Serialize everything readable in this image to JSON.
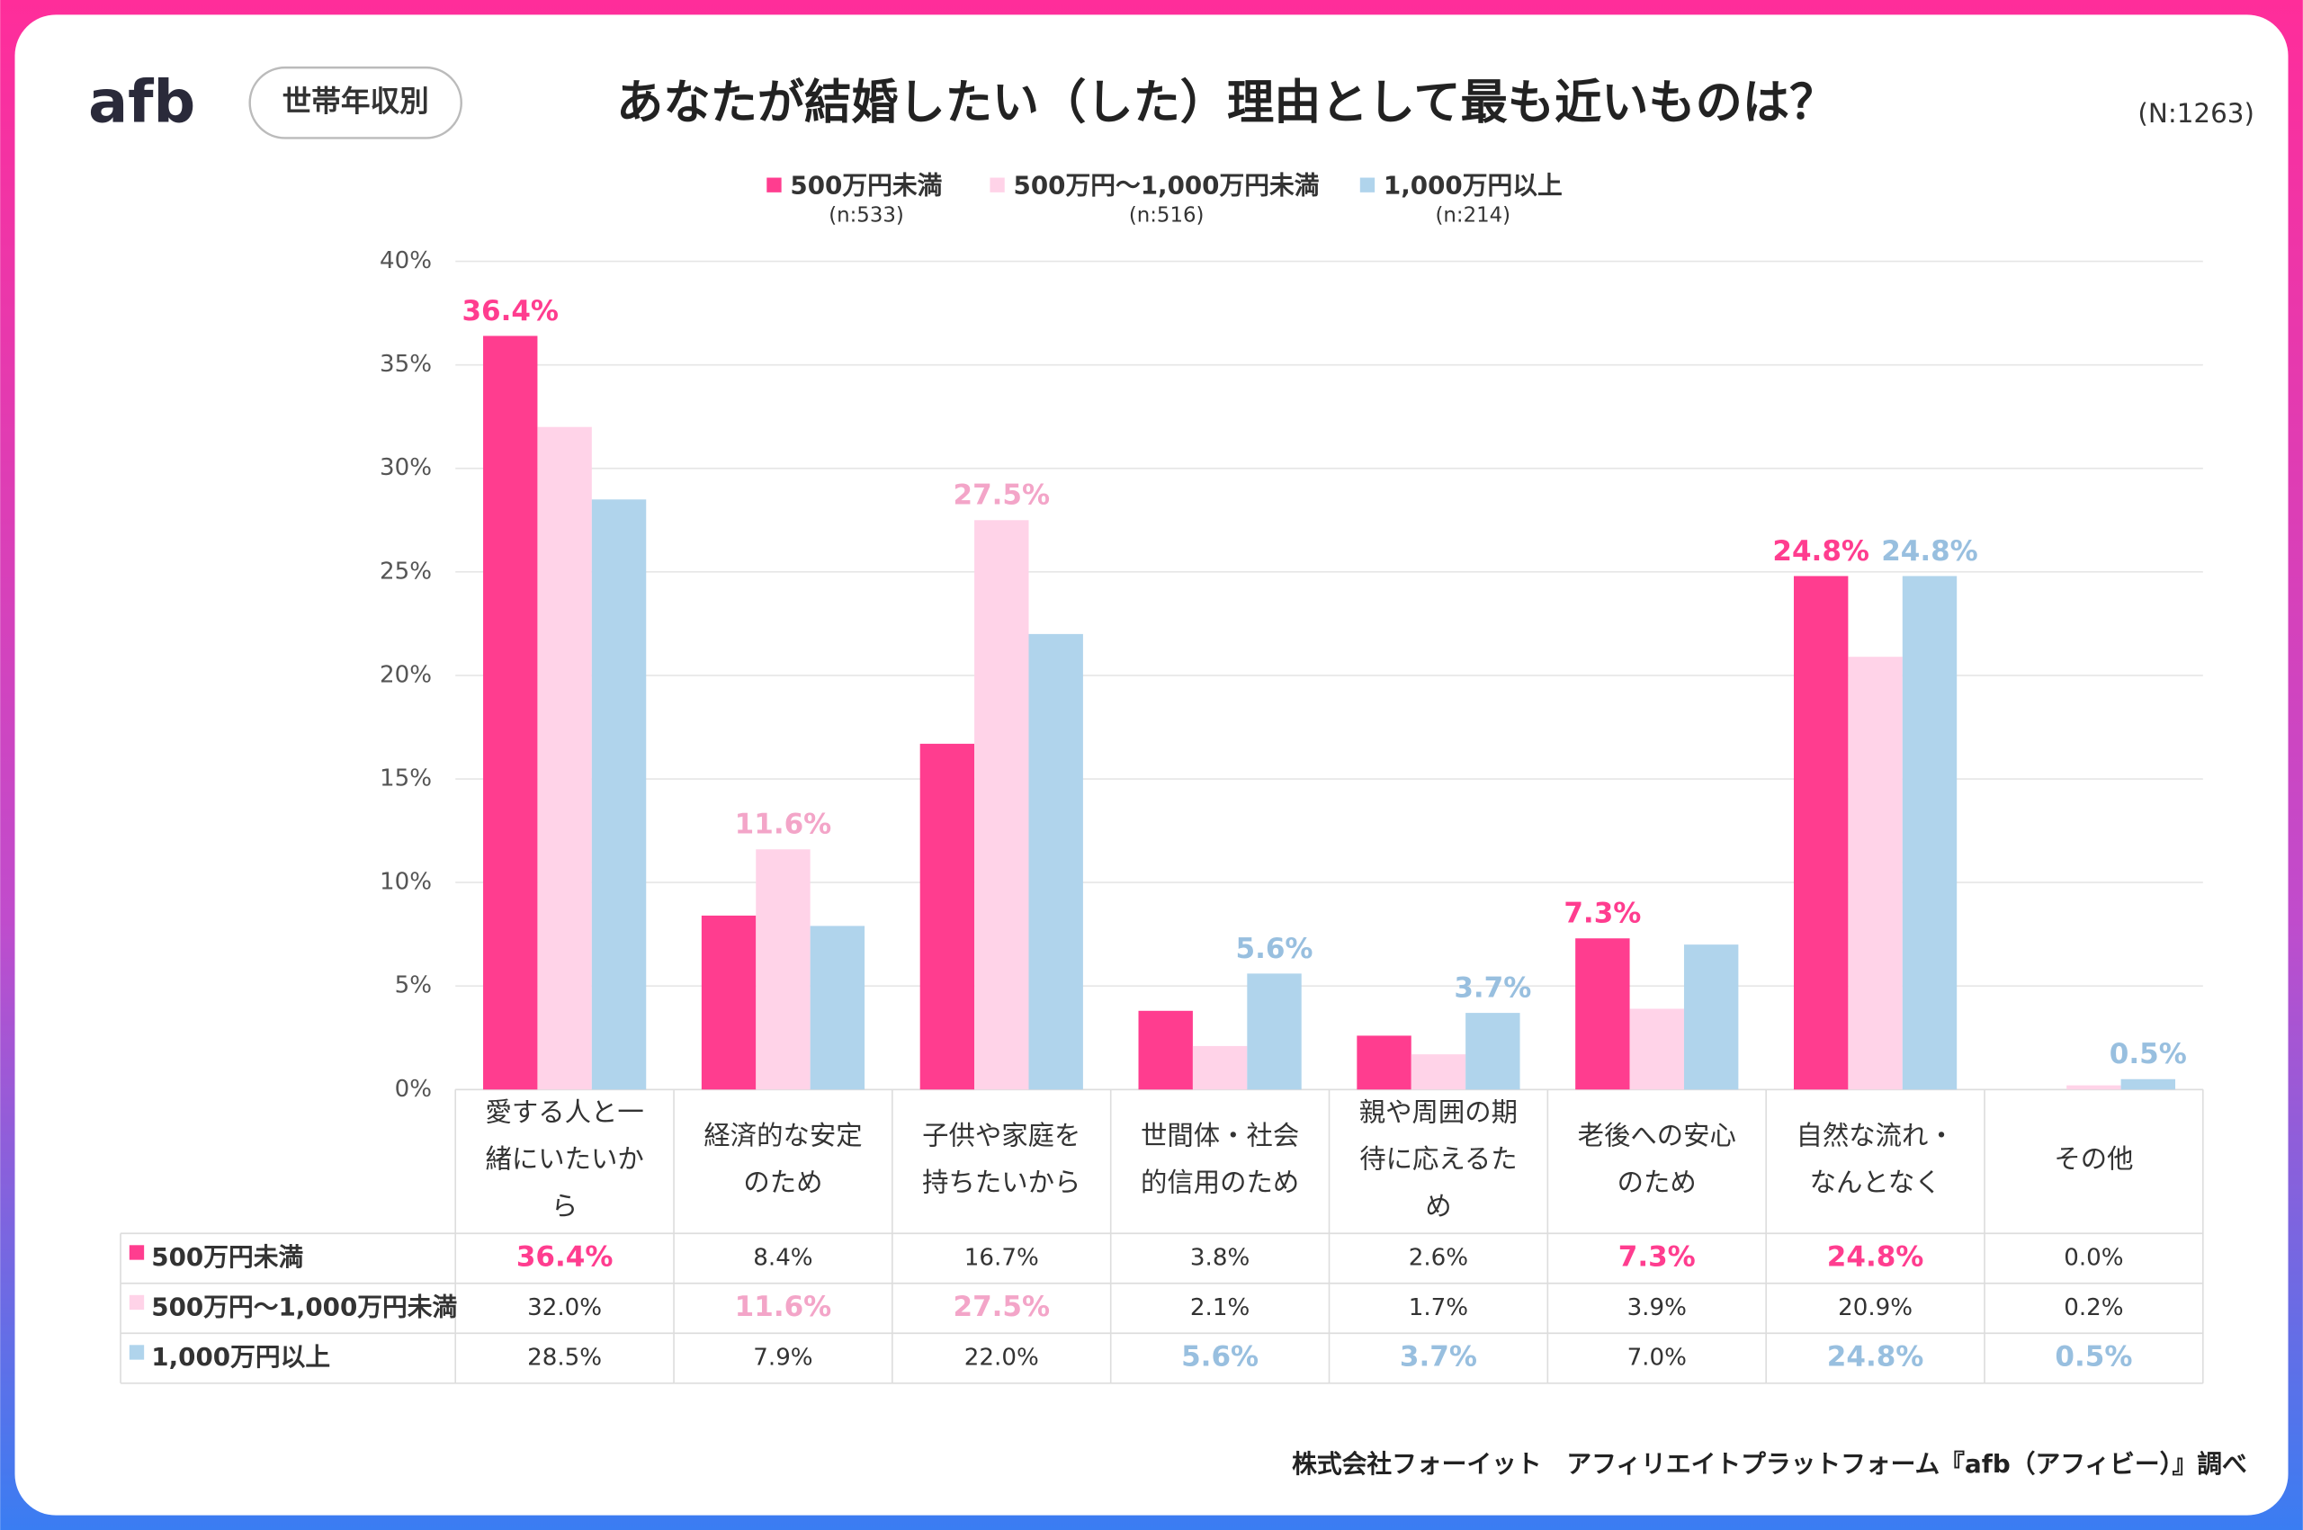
{
  "logo": "afb",
  "badge": "世帯年収別",
  "sample_size": "(N:1263)",
  "source": "株式会社フォーイット　アフィリエイトプラットフォーム『afb（アフィビー）』調べ",
  "chart_data": {
    "type": "bar",
    "title": "あなたが結婚したい（した）理由として最も近いものは？",
    "categories": [
      "愛する人と一緒にいたいから",
      "経済的な安定のため",
      "子供や家庭を持ちたいから",
      "世間体・社会的信用のため",
      "親や周囲の期待に応えるため",
      "老後への安心のため",
      "自然な流れ・なんとなく",
      "その他"
    ],
    "series": [
      {
        "name": "500万円未満",
        "n": "(n:533)",
        "color": "#ff3d8f",
        "label_color": "#ff3d8f",
        "values": [
          36.4,
          8.4,
          16.7,
          3.8,
          2.6,
          7.3,
          24.8,
          0.0
        ],
        "value_labels": [
          "36.4%",
          "8.4%",
          "16.7%",
          "3.8%",
          "2.6%",
          "7.3%",
          "24.8%",
          "0.0%"
        ]
      },
      {
        "name": "500万円〜1,000万円未満",
        "n": "(n:516)",
        "color": "#ffd3e8",
        "label_color": "#f3a5c8",
        "values": [
          32.0,
          11.6,
          27.5,
          2.1,
          1.7,
          3.9,
          20.9,
          0.2
        ],
        "value_labels": [
          "32.0%",
          "11.6%",
          "27.5%",
          "2.1%",
          "1.7%",
          "3.9%",
          "20.9%",
          "0.2%"
        ]
      },
      {
        "name": "1,000万円以上",
        "n": "(n:214)",
        "color": "#b0d4ec",
        "label_color": "#98bfdf",
        "values": [
          28.5,
          7.9,
          22.0,
          5.6,
          3.7,
          7.0,
          24.8,
          0.5
        ],
        "value_labels": [
          "28.5%",
          "7.9%",
          "22.0%",
          "5.6%",
          "3.7%",
          "7.0%",
          "24.8%",
          "0.5%"
        ]
      }
    ],
    "ylim": [
      0,
      40
    ],
    "yticks": [
      {
        "value": 0,
        "label": "0%"
      },
      {
        "value": 5,
        "label": "5%"
      },
      {
        "value": 10,
        "label": "10%"
      },
      {
        "value": 15,
        "label": "15%"
      },
      {
        "value": 20,
        "label": "20%"
      },
      {
        "value": 25,
        "label": "25%"
      },
      {
        "value": 30,
        "label": "30%"
      },
      {
        "value": 35,
        "label": "35%"
      },
      {
        "value": 40,
        "label": "40%"
      }
    ],
    "grid": true
  }
}
